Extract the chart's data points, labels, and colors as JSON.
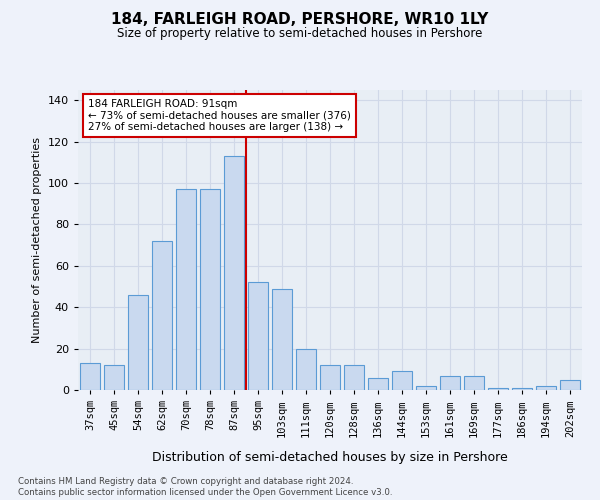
{
  "title": "184, FARLEIGH ROAD, PERSHORE, WR10 1LY",
  "subtitle": "Size of property relative to semi-detached houses in Pershore",
  "xlabel": "Distribution of semi-detached houses by size in Pershore",
  "ylabel": "Number of semi-detached properties",
  "categories": [
    "37sqm",
    "45sqm",
    "54sqm",
    "62sqm",
    "70sqm",
    "78sqm",
    "87sqm",
    "95sqm",
    "103sqm",
    "111sqm",
    "120sqm",
    "128sqm",
    "136sqm",
    "144sqm",
    "153sqm",
    "161sqm",
    "169sqm",
    "177sqm",
    "186sqm",
    "194sqm",
    "202sqm"
  ],
  "values": [
    13,
    12,
    46,
    72,
    97,
    97,
    113,
    52,
    49,
    20,
    12,
    12,
    6,
    9,
    2,
    7,
    7,
    1,
    1,
    2,
    5
  ],
  "bar_color": "#c9d9ef",
  "bar_edge_color": "#5b9bd5",
  "vline_color": "#cc0000",
  "annotation_text": "184 FARLEIGH ROAD: 91sqm\n← 73% of semi-detached houses are smaller (376)\n27% of semi-detached houses are larger (138) →",
  "annotation_box_color": "#ffffff",
  "annotation_box_edge": "#cc0000",
  "ylim": [
    0,
    145
  ],
  "yticks": [
    0,
    20,
    40,
    60,
    80,
    100,
    120,
    140
  ],
  "grid_color": "#d0d8e8",
  "plot_bg_color": "#e8eef5",
  "fig_bg_color": "#eef2fa",
  "footer_line1": "Contains HM Land Registry data © Crown copyright and database right 2024.",
  "footer_line2": "Contains public sector information licensed under the Open Government Licence v3.0."
}
